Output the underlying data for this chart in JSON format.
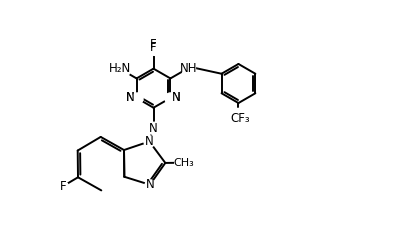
{
  "bg_color": "#ffffff",
  "line_color": "#000000",
  "lw": 1.4,
  "fs": 8.5,
  "xlim": [
    0,
    10
  ],
  "ylim": [
    0,
    6.5
  ]
}
